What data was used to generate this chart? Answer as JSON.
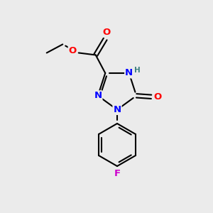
{
  "bg_color": "#ebebeb",
  "bond_color": "#000000",
  "bond_width": 1.5,
  "atom_colors": {
    "N": "#0000FF",
    "O": "#FF0000",
    "F": "#CC00CC",
    "H": "#3d8080",
    "C": "#000000"
  },
  "fig_width": 3.0,
  "fig_height": 3.0,
  "dpi": 100,
  "xlim": [
    0,
    10
  ],
  "ylim": [
    0,
    10
  ]
}
